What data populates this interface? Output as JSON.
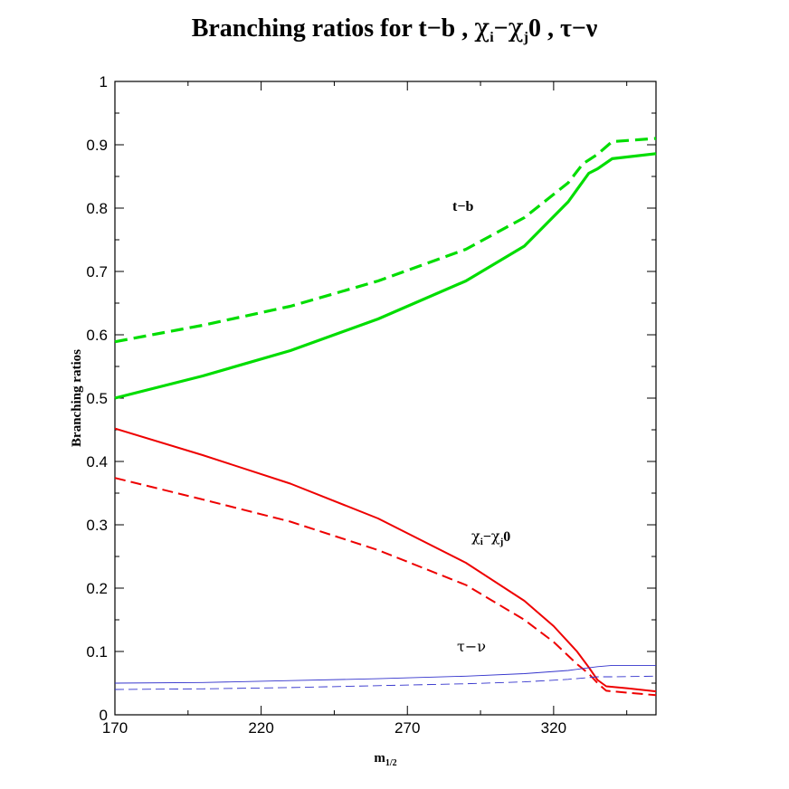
{
  "chart_data": {
    "type": "line",
    "title": {
      "prefix": "Branching ratios  for  t−b , ",
      "chi": "χ",
      "sub_i": "i",
      "dash": "−",
      "sub_j": "j",
      "zero": "0",
      "suffix": " , τ−ν"
    },
    "xlabel": {
      "main": "m",
      "sub": "1/2"
    },
    "ylabel": "Branching ratios",
    "xlim": [
      170,
      355
    ],
    "ylim": [
      0,
      1
    ],
    "xticks": [
      170,
      220,
      270,
      320
    ],
    "yticks": [
      0,
      0.1,
      0.2,
      0.3,
      0.4,
      0.5,
      0.6,
      0.7,
      0.8,
      0.9,
      1
    ],
    "grid": false,
    "annotations": {
      "tb": "t−b",
      "chi": {
        "chi": "χ",
        "sub_i": "i",
        "dash": "−",
        "sub_j": "j",
        "zero": "0"
      },
      "taunu": "τ−ν"
    },
    "colors": {
      "tb": "#00dd00",
      "chi": "#ee0000",
      "taunu": "#3333cc"
    },
    "series": [
      {
        "group": "tb",
        "style": "solid",
        "x": [
          170,
          200,
          230,
          260,
          290,
          310,
          325,
          332,
          335,
          340,
          355
        ],
        "y": [
          0.5,
          0.535,
          0.575,
          0.625,
          0.685,
          0.74,
          0.81,
          0.855,
          0.862,
          0.878,
          0.886
        ]
      },
      {
        "group": "tb",
        "style": "dashed",
        "x": [
          170,
          200,
          230,
          260,
          290,
          310,
          325,
          330,
          335,
          340,
          355
        ],
        "y": [
          0.589,
          0.615,
          0.645,
          0.685,
          0.735,
          0.785,
          0.84,
          0.87,
          0.885,
          0.905,
          0.91
        ]
      },
      {
        "group": "chi",
        "style": "solid",
        "x": [
          170,
          200,
          230,
          260,
          290,
          310,
          320,
          328,
          332,
          335,
          338,
          345,
          355
        ],
        "y": [
          0.452,
          0.41,
          0.365,
          0.31,
          0.24,
          0.18,
          0.14,
          0.1,
          0.075,
          0.055,
          0.045,
          0.042,
          0.037
        ]
      },
      {
        "group": "chi",
        "style": "dashed",
        "x": [
          170,
          200,
          230,
          260,
          290,
          310,
          320,
          328,
          332,
          335,
          338,
          345,
          355
        ],
        "y": [
          0.374,
          0.34,
          0.305,
          0.26,
          0.205,
          0.15,
          0.115,
          0.08,
          0.065,
          0.05,
          0.038,
          0.035,
          0.031
        ]
      },
      {
        "group": "taunu",
        "style": "solid",
        "x": [
          170,
          200,
          230,
          260,
          290,
          310,
          325,
          335,
          340,
          355
        ],
        "y": [
          0.05,
          0.051,
          0.054,
          0.057,
          0.061,
          0.065,
          0.07,
          0.076,
          0.078,
          0.078
        ]
      },
      {
        "group": "taunu",
        "style": "dashed",
        "x": [
          170,
          200,
          230,
          260,
          290,
          310,
          325,
          335,
          340,
          355
        ],
        "y": [
          0.04,
          0.041,
          0.043,
          0.046,
          0.049,
          0.052,
          0.056,
          0.06,
          0.06,
          0.061
        ]
      }
    ]
  }
}
